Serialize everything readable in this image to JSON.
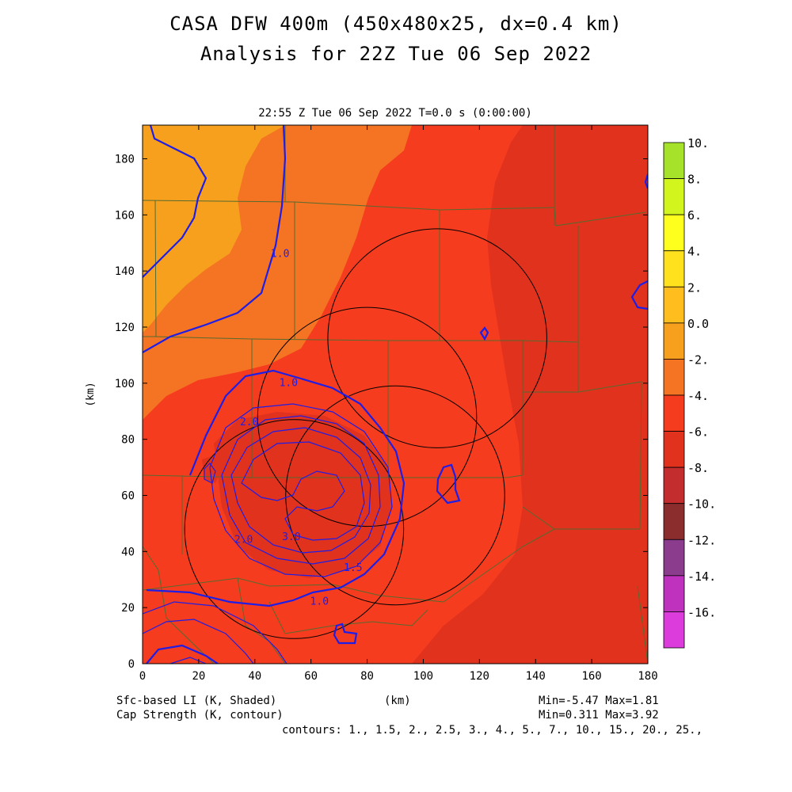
{
  "header": {
    "title_line1": "CASA DFW 400m (450x480x25, dx=0.4 km)",
    "title_line2": "Analysis for 22Z Tue 06 Sep 2022",
    "subtitle": "22:55 Z Tue 06 Sep 2022   T=0.0 s (0:00:00)"
  },
  "footer": {
    "shaded_label": "Sfc-based LI (K, Shaded)",
    "contour_label": "Cap Strength (K, contour)",
    "xunit": "(km)",
    "shaded_minmax": "Min=-5.47 Max=1.81",
    "contour_minmax": "Min=0.311 Max=3.92",
    "contours": "contours: 1., 1.5, 2., 2.5, 3., 4., 5., 7., 10., 15., 20., 25.,"
  },
  "chart_data": {
    "type": "heatmap",
    "title": "CASA DFW 400m (450x480x25, dx=0.4 km)",
    "subtitle": "Analysis for 22Z Tue 06 Sep 2022",
    "xlabel": "(km)",
    "ylabel": "(km)",
    "xlim": [
      0,
      180
    ],
    "ylim": [
      0,
      192
    ],
    "xticks": [
      0,
      20,
      40,
      60,
      80,
      100,
      120,
      140,
      160,
      180
    ],
    "yticks": [
      0,
      20,
      40,
      60,
      80,
      100,
      120,
      140,
      160,
      180
    ],
    "shaded_field": "Sfc-based LI (K)",
    "shaded_range": [
      -5.47,
      1.81
    ],
    "contour_field": "Cap Strength (K)",
    "contour_range": [
      0.311,
      3.92
    ],
    "contour_levels": [
      1,
      1.5,
      2,
      2.5,
      3,
      4,
      5,
      7,
      10,
      15,
      20,
      25
    ],
    "colorbar": {
      "levels": [
        10,
        8,
        6,
        4,
        2,
        0,
        -2,
        -4,
        -6,
        -8,
        -10,
        -12,
        -14,
        -16
      ],
      "tick_labels": [
        "10.",
        "8.",
        "6.",
        "4.",
        "2.",
        "0.0",
        "-2.",
        "-4.",
        "-6.",
        "-8.",
        "-10.",
        "-12.",
        "-14.",
        "-16."
      ],
      "colors": [
        "#a6e22a",
        "#d2f51e",
        "#ffff1e",
        "#ffe11e",
        "#ffbe1e",
        "#f7a01e",
        "#f57423",
        "#f63c1e",
        "#e1321e",
        "#c32d2d",
        "#8c2d2d",
        "#8c3c8c",
        "#be32be",
        "#dc3cdc"
      ]
    },
    "contour_labels": [
      {
        "text": "1.0",
        "x": 49,
        "y": 145
      },
      {
        "text": "1.0",
        "x": 52,
        "y": 99
      },
      {
        "text": "2.0",
        "x": 38,
        "y": 85
      },
      {
        "text": "3.0",
        "x": 53,
        "y": 44
      },
      {
        "text": "2.0",
        "x": 36,
        "y": 43
      },
      {
        "text": "1.5",
        "x": 75,
        "y": 33
      },
      {
        "text": "1.0",
        "x": 63,
        "y": 21
      }
    ],
    "range_rings": [
      {
        "center": [
          105,
          116
        ],
        "radius": 39
      },
      {
        "center": [
          80,
          88
        ],
        "radius": 39
      },
      {
        "center": [
          90,
          60
        ],
        "radius": 39
      },
      {
        "center": [
          54,
          48
        ],
        "radius": 39
      }
    ]
  }
}
